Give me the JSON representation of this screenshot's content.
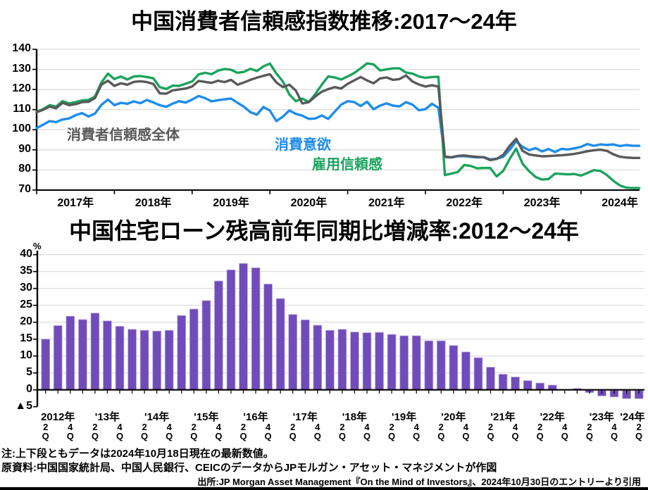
{
  "footer": {
    "note": "注:上下段ともデータは2024年10月18日現在の最新数値。",
    "source_note": "原資料:中国国家統計局、中国人民銀行、CEICのデータからJPモルガン・アセット・マネジメントが作図",
    "citation": "出所:JP Morgan  Asset Management『On the Mind of Investors』、2024年10月30日のエントリーより引用"
  },
  "chart_data": [
    {
      "type": "line",
      "title": "中国消費者信頼感指数推移:2017〜24年",
      "x_start": "2017-01",
      "x_end": "2024-10",
      "ylim": [
        70,
        140
      ],
      "y_ticks": [
        140,
        130,
        120,
        110,
        100,
        90,
        80,
        70
      ],
      "x_year_labels": [
        "2017年",
        "2018年",
        "2019年",
        "2020年",
        "2021年",
        "2022年",
        "2023年",
        "2024年"
      ],
      "grid": true,
      "legend_position": "inside",
      "series": [
        {
          "name": "消費者信頼感全体",
          "color": "#595959",
          "values": [
            108.7,
            109.9,
            111.5,
            110.7,
            113.4,
            112.2,
            112.7,
            113.7,
            113.9,
            115.7,
            122.4,
            124.4,
            121.8,
            123.1,
            122.4,
            123.8,
            124.1,
            123.7,
            122.8,
            118.1,
            117.9,
            119.6,
            120.0,
            120.5,
            121.5,
            124.3,
            123.8,
            123.3,
            124.4,
            123.7,
            124.8,
            122.4,
            123.5,
            124.8,
            125.9,
            126.8,
            127.6,
            123.5,
            121.2,
            122.4,
            119.5,
            113.1,
            113.7,
            116.5,
            118.9,
            120.2,
            121.2,
            120.5,
            122.8,
            124.5,
            126.2,
            124.5,
            123.1,
            125.5,
            126.0,
            124.8,
            125.2,
            127.0,
            124.0,
            122.5,
            121.5,
            122.1,
            121.5,
            86.7,
            86.3,
            87.0,
            87.2,
            86.8,
            86.5,
            86.3,
            84.9,
            85.5,
            87.5,
            92.0,
            95.5,
            89.5,
            87.7,
            87.2,
            86.8,
            86.9,
            87.1,
            87.3,
            87.6,
            88.0,
            88.6,
            89.3,
            89.8,
            90.1,
            89.5,
            87.8,
            86.6,
            86.2,
            86.0,
            86.0
          ]
        },
        {
          "name": "消費意欲",
          "color": "#1e8ceb",
          "values": [
            100.8,
            102.5,
            104.3,
            103.8,
            105.1,
            105.6,
            107.2,
            108.3,
            106.6,
            108.0,
            112.4,
            115.0,
            112.2,
            113.4,
            112.9,
            114.1,
            113.2,
            114.8,
            113.6,
            112.2,
            111.4,
            113.0,
            114.2,
            113.5,
            115.0,
            116.8,
            115.7,
            114.1,
            114.7,
            115.1,
            115.5,
            113.4,
            111.4,
            108.7,
            107.5,
            111.3,
            109.5,
            104.3,
            106.5,
            109.6,
            107.9,
            107.0,
            105.4,
            105.6,
            107.1,
            105.4,
            109.0,
            112.5,
            114.2,
            113.8,
            111.8,
            113.9,
            110.2,
            112.0,
            113.1,
            112.0,
            111.6,
            113.7,
            112.5,
            109.7,
            110.2,
            112.9,
            111.0,
            86.4,
            86.2,
            86.8,
            86.9,
            86.5,
            86.2,
            86.4,
            85.3,
            85.6,
            86.5,
            90.0,
            94.3,
            91.5,
            89.8,
            90.9,
            89.2,
            90.4,
            88.9,
            90.5,
            90.2,
            90.8,
            91.5,
            92.9,
            92.0,
            92.7,
            92.4,
            92.7,
            91.9,
            92.4,
            92.0,
            92.0
          ]
        },
        {
          "name": "雇用信頼感",
          "color": "#1ba35c",
          "values": [
            108.9,
            110.3,
            112.2,
            111.5,
            114.2,
            113.1,
            113.7,
            114.6,
            114.8,
            116.5,
            123.5,
            127.9,
            125.2,
            126.5,
            125.0,
            126.5,
            126.7,
            126.2,
            125.6,
            121.2,
            120.3,
            121.9,
            121.8,
            122.9,
            124.0,
            127.5,
            128.3,
            127.6,
            129.4,
            130.2,
            129.8,
            128.3,
            128.8,
            130.3,
            129.2,
            131.5,
            132.9,
            128.0,
            124.0,
            117.5,
            114.2,
            115.5,
            113.8,
            117.7,
            122.4,
            126.5,
            126.0,
            125.0,
            126.5,
            128.2,
            130.5,
            133.0,
            132.5,
            129.5,
            130.0,
            130.5,
            130.5,
            128.4,
            127.9,
            126.5,
            125.8,
            126.2,
            126.3,
            77.5,
            78.2,
            79.0,
            82.5,
            82.0,
            80.8,
            81.0,
            81.0,
            76.8,
            79.5,
            85.5,
            90.6,
            83.0,
            79.4,
            76.5,
            75.2,
            75.5,
            78.2,
            78.0,
            77.8,
            78.0,
            77.2,
            78.5,
            79.9,
            79.5,
            77.5,
            74.6,
            72.3,
            71.2,
            71.0,
            71.0
          ]
        }
      ]
    },
    {
      "type": "bar",
      "title": "中国住宅ローン残高前年同期比増減率:2012〜24年",
      "unit": "%",
      "bar_color": "#6f4cba",
      "ylim": [
        -5,
        40
      ],
      "y_ticks": [
        40,
        35,
        30,
        25,
        20,
        15,
        10,
        5,
        0,
        -5
      ],
      "y_tick_labels": [
        "40",
        "35",
        "30",
        "25",
        "20",
        "15",
        "10",
        "5",
        "0",
        "▲5"
      ],
      "x_year_labels": [
        "2012年",
        "'13年",
        "'14年",
        "'15年",
        "'16年",
        "'17年",
        "'18年",
        "'19年",
        "'20年",
        "'21年",
        "'22年",
        "'23年",
        "'24年"
      ],
      "quarter_labels": [
        "2Q",
        "4Q"
      ],
      "quarters": [
        "2012Q2",
        "2012Q3",
        "2012Q4",
        "2013Q1",
        "2013Q2",
        "2013Q3",
        "2013Q4",
        "2014Q1",
        "2014Q2",
        "2014Q3",
        "2014Q4",
        "2015Q1",
        "2015Q2",
        "2015Q3",
        "2015Q4",
        "2016Q1",
        "2016Q2",
        "2016Q3",
        "2016Q4",
        "2017Q1",
        "2017Q2",
        "2017Q3",
        "2017Q4",
        "2018Q1",
        "2018Q2",
        "2018Q3",
        "2018Q4",
        "2019Q1",
        "2019Q2",
        "2019Q3",
        "2019Q4",
        "2020Q1",
        "2020Q2",
        "2020Q3",
        "2020Q4",
        "2021Q1",
        "2021Q2",
        "2021Q3",
        "2021Q4",
        "2022Q1",
        "2022Q2",
        "2022Q3",
        "2022Q4",
        "2023Q1",
        "2023Q2",
        "2023Q3",
        "2023Q4",
        "2024Q1",
        "2024Q2"
      ],
      "values": [
        15.0,
        19.0,
        21.8,
        20.8,
        22.7,
        20.4,
        18.8,
        17.9,
        17.6,
        17.4,
        17.6,
        22.0,
        23.9,
        26.4,
        32.2,
        35.5,
        37.4,
        36.1,
        31.3,
        27.0,
        22.3,
        20.7,
        19.1,
        17.6,
        17.9,
        17.1,
        16.9,
        17.0,
        16.4,
        16.0,
        16.0,
        14.5,
        14.5,
        13.1,
        11.2,
        9.5,
        6.7,
        4.6,
        3.8,
        2.7,
        2.0,
        1.4,
        0.1,
        0.4,
        -0.6,
        -1.6,
        -1.9,
        -2.4,
        -2.4
      ]
    }
  ],
  "colors": {
    "grid": "#d9d9d9",
    "axis": "#000000"
  }
}
